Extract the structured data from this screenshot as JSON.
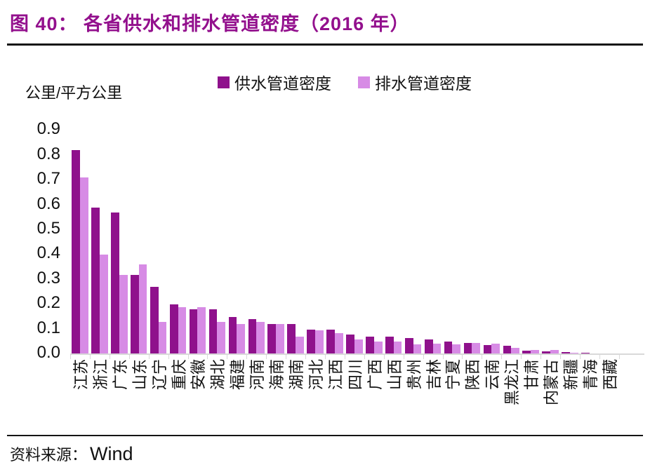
{
  "figure": {
    "title": "图 40：  各省供水和排水管道密度（2016 年）"
  },
  "source": {
    "label": "资料来源：",
    "value": "Wind"
  },
  "chart_data": {
    "type": "bar",
    "title": "各省供水和排水管道密度（2016 年）",
    "unit_label": "公里/平方公里",
    "xlabel": "",
    "ylabel": "公里/平方公里",
    "ylim": [
      0,
      0.9
    ],
    "ytick_labels": [
      "0.9",
      "0.8",
      "0.7",
      "0.6",
      "0.5",
      "0.4",
      "0.3",
      "0.2",
      "0.1",
      "0.0"
    ],
    "grid": false,
    "legend_position": "top",
    "categories": [
      "江苏",
      "浙江",
      "广东",
      "山东",
      "辽宁",
      "重庆",
      "安徽",
      "湖北",
      "福建",
      "河南",
      "海南",
      "湖南",
      "河北",
      "江西",
      "四川",
      "广西",
      "山西",
      "贵州",
      "吉林",
      "宁夏",
      "陕西",
      "云南",
      "黑龙江",
      "甘肃",
      "内蒙古",
      "新疆",
      "青海",
      "西藏"
    ],
    "series": [
      {
        "name": "供水管道密度",
        "color": "#8F118C",
        "values": [
          0.82,
          0.59,
          0.57,
          0.32,
          0.27,
          0.2,
          0.18,
          0.18,
          0.15,
          0.14,
          0.12,
          0.12,
          0.1,
          0.1,
          0.08,
          0.07,
          0.07,
          0.065,
          0.06,
          0.05,
          0.045,
          0.038,
          0.035,
          0.015,
          0.012,
          0.008,
          0.005,
          0.002
        ]
      },
      {
        "name": "排水管道密度",
        "color": "#D78BE5",
        "values": [
          0.71,
          0.4,
          0.32,
          0.36,
          0.13,
          0.19,
          0.19,
          0.13,
          0.12,
          0.13,
          0.12,
          0.07,
          0.095,
          0.085,
          0.06,
          0.05,
          0.05,
          0.04,
          0.042,
          0.04,
          0.046,
          0.042,
          0.025,
          0.017,
          0.016,
          0.005,
          0.003,
          0.001
        ]
      }
    ]
  }
}
